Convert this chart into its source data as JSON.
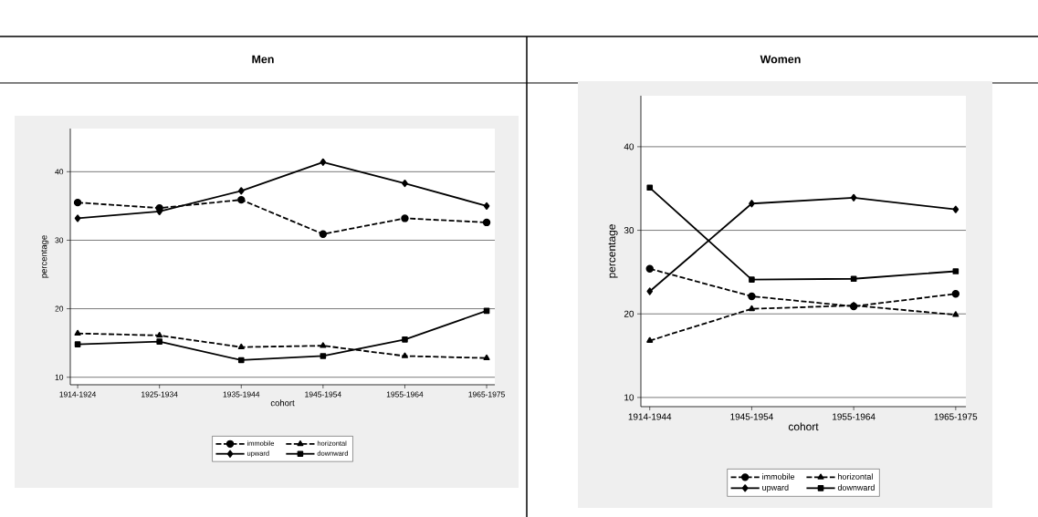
{
  "chart_data": [
    {
      "type": "line",
      "title": "Men",
      "xlabel": "cohort",
      "ylabel": "percentage",
      "categories": [
        "1914-1924",
        "1925-1934",
        "1935-1944",
        "1945-1954",
        "1955-1964",
        "1965-1975"
      ],
      "ylim": [
        8.9,
        46.3
      ],
      "yticks": [
        10,
        20,
        30,
        40
      ],
      "grid": "y",
      "legend": "bottom",
      "series": [
        {
          "name": "immobile",
          "color": "#000000",
          "marker": "circle",
          "line_style": "dashed",
          "values": [
            35.5,
            34.7,
            35.9,
            30.9,
            33.2,
            32.6
          ]
        },
        {
          "name": "horizontal",
          "color": "#000000",
          "marker": "triangle",
          "line_style": "dashed",
          "values": [
            16.4,
            16.1,
            14.4,
            14.6,
            13.1,
            12.8
          ]
        },
        {
          "name": "upward",
          "color": "#000000",
          "marker": "diamond",
          "line_style": "solid",
          "values": [
            33.2,
            34.2,
            37.2,
            41.4,
            38.3,
            35.0
          ]
        },
        {
          "name": "downward",
          "color": "#000000",
          "marker": "square",
          "line_style": "solid",
          "values": [
            14.8,
            15.2,
            12.5,
            13.1,
            15.5,
            19.7
          ]
        }
      ]
    },
    {
      "type": "line",
      "title": "Women",
      "xlabel": "cohort",
      "ylabel": "percentage",
      "categories": [
        "1914-1944",
        "1945-1954",
        "1955-1964",
        "1965-1975"
      ],
      "ylim": [
        8.9,
        46.1
      ],
      "yticks": [
        10,
        20,
        30,
        40
      ],
      "grid": "y",
      "legend": "bottom",
      "series": [
        {
          "name": "immobile",
          "color": "#000000",
          "marker": "circle",
          "line_style": "dashed",
          "values": [
            25.4,
            22.1,
            20.9,
            22.4
          ]
        },
        {
          "name": "horizontal",
          "color": "#000000",
          "marker": "triangle",
          "line_style": "dashed",
          "values": [
            16.8,
            20.6,
            21.0,
            19.9
          ]
        },
        {
          "name": "upward",
          "color": "#000000",
          "marker": "diamond",
          "line_style": "solid",
          "values": [
            22.7,
            33.2,
            33.9,
            32.5
          ]
        },
        {
          "name": "downward",
          "color": "#000000",
          "marker": "square",
          "line_style": "solid",
          "values": [
            35.1,
            24.1,
            24.2,
            25.1
          ]
        }
      ]
    }
  ]
}
